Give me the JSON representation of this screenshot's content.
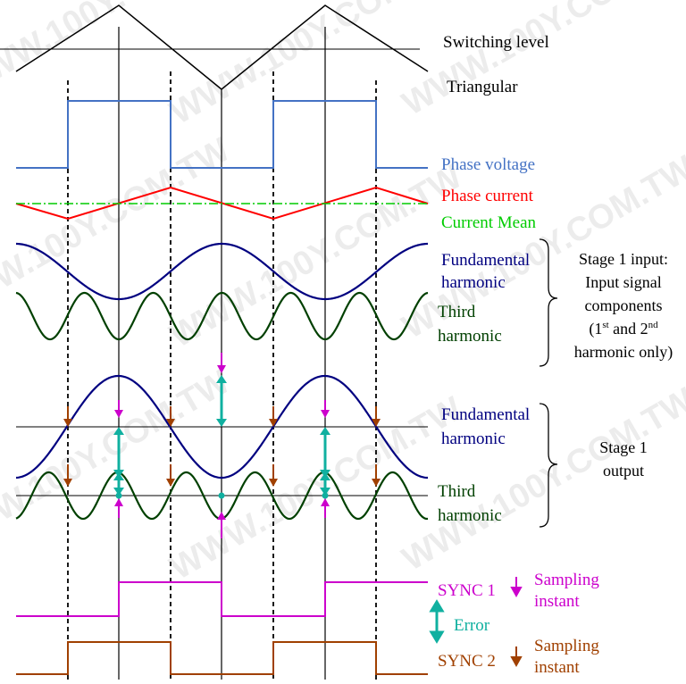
{
  "labels": {
    "switching_level": "Switching level",
    "triangular": "Triangular",
    "phase_voltage": "Phase voltage",
    "phase_current": "Phase current",
    "current_mean": "Current Mean",
    "fund1_a": "Fundamental",
    "fund1_b": "harmonic",
    "third1_a": "Third",
    "third1_b": "harmonic",
    "fund2_a": "Fundamental",
    "fund2_b": "harmonic",
    "third2_a": "Third",
    "third2_b": "harmonic",
    "sync1": "SYNC 1",
    "sync2": "SYNC 2",
    "sampling1_a": "Sampling",
    "sampling1_b": "instant",
    "sampling2_a": "Sampling",
    "sampling2_b": "instant",
    "error": "Error"
  },
  "stage1_input": {
    "line1": "Stage 1 input:",
    "line2": "Input signal",
    "line3": "components",
    "line4_pre": "(1",
    "line4_sup1": "st",
    "line4_mid": " and 2",
    "line4_sup2": "nd",
    "line5": "harmonic only)"
  },
  "stage1_output": {
    "line1": "Stage 1",
    "line2": "output"
  },
  "watermark": "WWW.100Y.COM.TW",
  "colors": {
    "triangle": "#000000",
    "phase_voltage": "#4472c4",
    "phase_current": "#ff0000",
    "current_mean": "#00cc00",
    "fundamental": "#000080",
    "third": "#004000",
    "sync1": "#cc00cc",
    "sync2": "#a04000",
    "error": "#10b0a0",
    "stage_text": "#000000"
  }
}
